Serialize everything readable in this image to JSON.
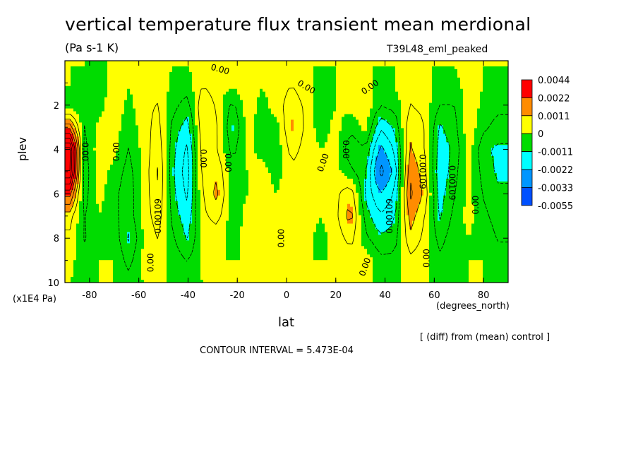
{
  "figure": {
    "title": "vertical temperature flux transient mean merdional",
    "subtitle": "(Pa s-1 K)",
    "run_label": "T39L48_eml_peaked",
    "y_units": "(x1E4 Pa)",
    "x_units": "(degrees_north)",
    "diff_note": "[ (diff) from (mean) control ]",
    "contour_note": "CONTOUR INTERVAL = 5.473E-04"
  },
  "chart_data": {
    "type": "heatmap",
    "title": "vertical temperature flux transient mean merdional",
    "subtitle": "(Pa s-1 K)",
    "xlabel": "lat",
    "ylabel": "plev",
    "xlim": [
      -90,
      90
    ],
    "ylim": [
      10,
      0
    ],
    "x_ticks": [
      -80,
      -60,
      -40,
      -20,
      0,
      20,
      40,
      60,
      80
    ],
    "x_tick_labels": [
      "-80",
      "-60",
      "-40",
      "-20",
      "0",
      "20",
      "40",
      "60",
      "80"
    ],
    "y_ticks": [
      2,
      4,
      6,
      8,
      10
    ],
    "y_tick_labels": [
      "2",
      "4",
      "6",
      "8",
      "10"
    ],
    "contour_interval": 0.0005473,
    "legend": {
      "placement": "right",
      "levels": [
        "0.0044",
        "0.0022",
        "0.0011",
        "0",
        "-0.0011",
        "-0.0022",
        "-0.0033",
        "-0.0055"
      ],
      "colors": [
        "#ff0000",
        "#ff8c00",
        "#ffff00",
        "#00dc00",
        "#00ffff",
        "#0096ff",
        "#0050ff"
      ]
    },
    "field_columns": [
      {
        "lat": -88,
        "values": [
          0,
          0,
          -0.0002,
          0.002,
          0.0046,
          0.0044,
          0.0024,
          0.0008,
          0.0004,
          0.0002,
          0
        ]
      },
      {
        "lat": -82,
        "values": [
          0,
          -0.0002,
          -0.0004,
          -0.0006,
          -0.0008,
          -0.0009,
          -0.0008,
          -0.0006,
          -0.0006,
          -0.0004,
          -0.0002
        ]
      },
      {
        "lat": -76,
        "values": [
          -0.0002,
          -0.0004,
          -0.0002,
          0.0002,
          0.0004,
          0.0003,
          0.0002,
          0,
          -0.0002,
          0,
          0
        ]
      },
      {
        "lat": -70,
        "values": [
          0.0002,
          0.0004,
          0.0004,
          0.0003,
          0.0002,
          -0.0002,
          -0.0004,
          -0.0004,
          -0.0002,
          0,
          0
        ]
      },
      {
        "lat": -64,
        "values": [
          0,
          0,
          -0.0002,
          -0.0004,
          -0.0006,
          -0.0008,
          -0.0009,
          -0.0009,
          -0.0012,
          -0.0008,
          -0.0003
        ]
      },
      {
        "lat": -58,
        "values": [
          0.0002,
          0.0004,
          0.0004,
          0.0003,
          0.0002,
          0.0002,
          0.0002,
          0.0002,
          0,
          0.0002,
          0
        ]
      },
      {
        "lat": -52,
        "values": [
          0.0002,
          0.0004,
          0.0006,
          0.0008,
          0.001,
          0.0012,
          0.0011,
          0.0009,
          0.0006,
          0.0002,
          0
        ]
      },
      {
        "lat": -46,
        "values": [
          0,
          -0.0002,
          -0.0004,
          -0.0008,
          -0.001,
          -0.0011,
          -0.001,
          -0.0008,
          -0.0005,
          -0.0002,
          0
        ]
      },
      {
        "lat": -40,
        "values": [
          0,
          -0.0003,
          -0.0009,
          -0.0014,
          -0.0018,
          -0.002,
          -0.0018,
          -0.0015,
          -0.0012,
          -0.0006,
          -0.0002
        ]
      },
      {
        "lat": -34,
        "values": [
          0.0002,
          0.0006,
          0.0012,
          0.0011,
          0.0009,
          0.0008,
          0.0006,
          0.0004,
          0.0002,
          0.0002,
          0
        ]
      },
      {
        "lat": -28,
        "values": [
          0,
          0.0002,
          0.0004,
          0.0006,
          0.0006,
          0.001,
          0.0013,
          0.0008,
          0.0002,
          0,
          0
        ]
      },
      {
        "lat": -22,
        "values": [
          0,
          0,
          -0.0008,
          -0.0012,
          -0.0008,
          -0.0004,
          -0.0004,
          -0.0004,
          -0.0002,
          0,
          0
        ]
      },
      {
        "lat": -16,
        "values": [
          0.0002,
          0.0004,
          0.0003,
          0.0002,
          0.0002,
          0,
          0,
          0.0002,
          0.0002,
          0,
          0
        ]
      },
      {
        "lat": -10,
        "values": [
          0,
          0,
          -0.0002,
          -0.0002,
          -0.0002,
          0.0002,
          0.0002,
          0,
          0,
          0.0002,
          0
        ]
      },
      {
        "lat": -4,
        "values": [
          0,
          0.0002,
          0.0002,
          -0.0002,
          -0.0004,
          -0.0002,
          0,
          0.0002,
          0.0002,
          0.0002,
          0
        ]
      },
      {
        "lat": 2,
        "values": [
          0.0002,
          0.0006,
          0.001,
          0.0012,
          0.0008,
          0.0004,
          0.0002,
          0.0002,
          0.0003,
          0.0002,
          0
        ]
      },
      {
        "lat": 8,
        "values": [
          0,
          0.0002,
          0.0004,
          0.0004,
          0.0003,
          0.0002,
          0,
          0.0002,
          0.0002,
          0,
          0
        ]
      },
      {
        "lat": 14,
        "values": [
          0,
          -0.0002,
          -0.0004,
          -0.0003,
          0,
          0.0002,
          0.0002,
          0,
          -0.0002,
          0,
          0
        ]
      },
      {
        "lat": 20,
        "values": [
          0,
          0,
          0,
          0.0002,
          0.0002,
          0.0002,
          0.0004,
          0.0004,
          0.0002,
          0,
          0
        ]
      },
      {
        "lat": 26,
        "values": [
          0,
          0.0002,
          0.0002,
          -0.0004,
          -0.001,
          -0.0004,
          0.001,
          0.0014,
          0.0008,
          0.0002,
          0
        ]
      },
      {
        "lat": 32,
        "values": [
          0,
          0.0002,
          0.0004,
          0.0002,
          -0.0006,
          -0.001,
          -0.0012,
          -0.0008,
          -0.0004,
          0.0004,
          0
        ]
      },
      {
        "lat": 38,
        "values": [
          0,
          -0.0002,
          -0.0006,
          -0.0016,
          -0.0024,
          -0.003,
          -0.0022,
          -0.0016,
          -0.001,
          -0.0004,
          0
        ]
      },
      {
        "lat": 44,
        "values": [
          0,
          0,
          -0.0004,
          -0.001,
          -0.0016,
          -0.002,
          -0.0016,
          -0.0012,
          -0.0008,
          -0.0004,
          0
        ]
      },
      {
        "lat": 50,
        "values": [
          0.0002,
          0.0004,
          0.0006,
          0.001,
          0.0012,
          0.0016,
          0.0018,
          0.0014,
          0.001,
          0.0004,
          0
        ]
      },
      {
        "lat": 56,
        "values": [
          0,
          0.0002,
          0.0004,
          0.0006,
          0.0006,
          0.0008,
          0.001,
          0.0006,
          0.0004,
          0.0002,
          0
        ]
      },
      {
        "lat": 62,
        "values": [
          0,
          -0.0002,
          -0.0006,
          -0.0012,
          -0.0014,
          -0.0016,
          -0.0014,
          -0.0012,
          -0.0008,
          -0.0004,
          0
        ]
      },
      {
        "lat": 68,
        "values": [
          0,
          -0.0002,
          -0.0006,
          -0.0008,
          -0.001,
          -0.0008,
          -0.0006,
          -0.0004,
          -0.0002,
          -0.0002,
          0
        ]
      },
      {
        "lat": 74,
        "values": [
          0.0002,
          0.0002,
          0.0004,
          0.0004,
          0.0003,
          0.0002,
          0.0002,
          0.0002,
          0,
          0,
          0
        ]
      },
      {
        "lat": 80,
        "values": [
          0,
          0,
          -0.0002,
          -0.0004,
          -0.001,
          -0.0008,
          -0.0006,
          -0.0004,
          -0.0002,
          0,
          0
        ]
      },
      {
        "lat": 86,
        "values": [
          0,
          -0.0002,
          -0.0004,
          -0.0008,
          -0.0012,
          -0.0012,
          -0.001,
          -0.0008,
          -0.0006,
          -0.0003,
          0
        ]
      }
    ],
    "field_plev": [
      0.3,
      1.2,
      2.1,
      3.0,
      4.0,
      5.0,
      6.0,
      7.0,
      8.0,
      9.0,
      10.0
    ],
    "contour_labels": [
      {
        "text": "0.00",
        "lat": -82,
        "plev": 4.1,
        "angle": 90
      },
      {
        "text": "0.00",
        "lat": -69,
        "plev": 4.1,
        "angle": -90
      },
      {
        "text": "0.00109",
        "lat": -52,
        "plev": 7.0,
        "angle": -90
      },
      {
        "text": "0.00",
        "lat": -55,
        "plev": 9.1,
        "angle": -90
      },
      {
        "text": "0.00",
        "lat": -34,
        "plev": 4.4,
        "angle": 90
      },
      {
        "text": "0.00",
        "lat": -24,
        "plev": 4.6,
        "angle": 90
      },
      {
        "text": "0.00",
        "lat": -27,
        "plev": 0.4,
        "angle": 15
      },
      {
        "text": "0.00",
        "lat": 8,
        "plev": 1.2,
        "angle": 30
      },
      {
        "text": "0.00",
        "lat": 15,
        "plev": 4.6,
        "angle": -70
      },
      {
        "text": "0.00",
        "lat": 34,
        "plev": 1.2,
        "angle": -35
      },
      {
        "text": "0.00",
        "lat": 24,
        "plev": 4.0,
        "angle": 90
      },
      {
        "text": "0.00",
        "lat": -2,
        "plev": 8.0,
        "angle": -90
      },
      {
        "text": "0.00",
        "lat": 32,
        "plev": 9.3,
        "angle": -70
      },
      {
        "text": "0.00109",
        "lat": 42,
        "plev": 7.0,
        "angle": -90
      },
      {
        "text": "0.00109",
        "lat": 55,
        "plev": 5.0,
        "angle": 90
      },
      {
        "text": "0.00",
        "lat": 57,
        "plev": 8.9,
        "angle": -90
      },
      {
        "text": "0.00109",
        "lat": 67,
        "plev": 5.5,
        "angle": 90
      },
      {
        "text": "0.00",
        "lat": 77,
        "plev": 6.5,
        "angle": -90
      }
    ]
  }
}
